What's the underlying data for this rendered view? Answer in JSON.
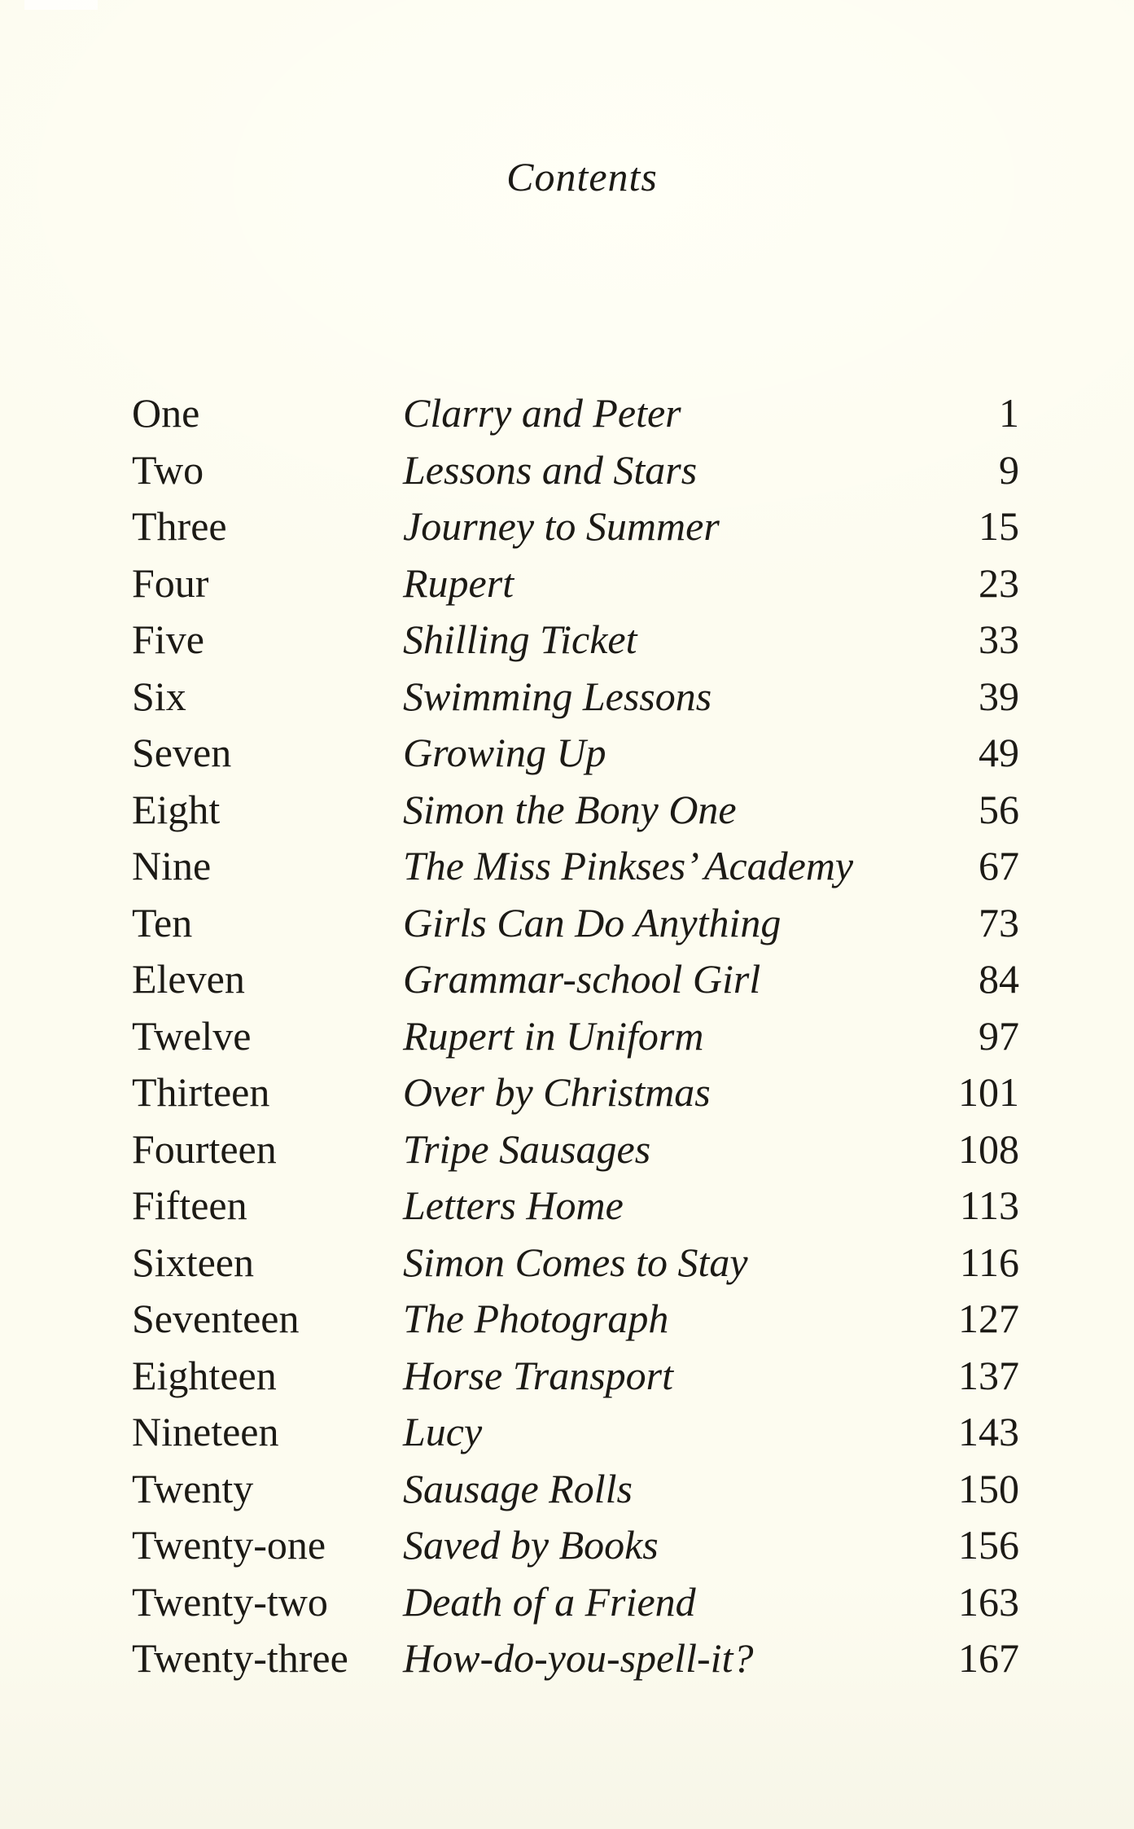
{
  "page": {
    "title": "Contents"
  },
  "toc": {
    "rows": [
      {
        "chapter": "One",
        "title": "Clarry and Peter",
        "page": "1"
      },
      {
        "chapter": "Two",
        "title": "Lessons and Stars",
        "page": "9"
      },
      {
        "chapter": "Three",
        "title": "Journey to Summer",
        "page": "15"
      },
      {
        "chapter": "Four",
        "title": "Rupert",
        "page": "23"
      },
      {
        "chapter": "Five",
        "title": "Shilling Ticket",
        "page": "33"
      },
      {
        "chapter": "Six",
        "title": "Swimming Lessons",
        "page": "39"
      },
      {
        "chapter": "Seven",
        "title": "Growing Up",
        "page": "49"
      },
      {
        "chapter": "Eight",
        "title": "Simon the Bony One",
        "page": "56"
      },
      {
        "chapter": "Nine",
        "title": "The Miss Pinkses’ Academy",
        "page": "67"
      },
      {
        "chapter": "Ten",
        "title": "Girls Can Do Anything",
        "page": "73"
      },
      {
        "chapter": "Eleven",
        "title": "Grammar-school Girl",
        "page": "84"
      },
      {
        "chapter": "Twelve",
        "title": "Rupert in Uniform",
        "page": "97"
      },
      {
        "chapter": "Thirteen",
        "title": "Over by Christmas",
        "page": "101"
      },
      {
        "chapter": "Fourteen",
        "title": "Tripe Sausages",
        "page": "108"
      },
      {
        "chapter": "Fifteen",
        "title": "Letters Home",
        "page": "113"
      },
      {
        "chapter": "Sixteen",
        "title": "Simon Comes to Stay",
        "page": "116"
      },
      {
        "chapter": "Seventeen",
        "title": "The Photograph",
        "page": "127"
      },
      {
        "chapter": "Eighteen",
        "title": "Horse Transport",
        "page": "137"
      },
      {
        "chapter": "Nineteen",
        "title": "Lucy",
        "page": "143"
      },
      {
        "chapter": "Twenty",
        "title": "Sausage Rolls",
        "page": "150"
      },
      {
        "chapter": "Twenty-one",
        "title": "Saved by Books",
        "page": "156"
      },
      {
        "chapter": "Twenty-two",
        "title": "Death of a Friend",
        "page": "163"
      },
      {
        "chapter": "Twenty-three",
        "title": "How-do-you-spell-it?",
        "page": "167"
      }
    ]
  },
  "colors": {
    "paper": "#fdfcf0",
    "ink": "#1c1a15"
  }
}
